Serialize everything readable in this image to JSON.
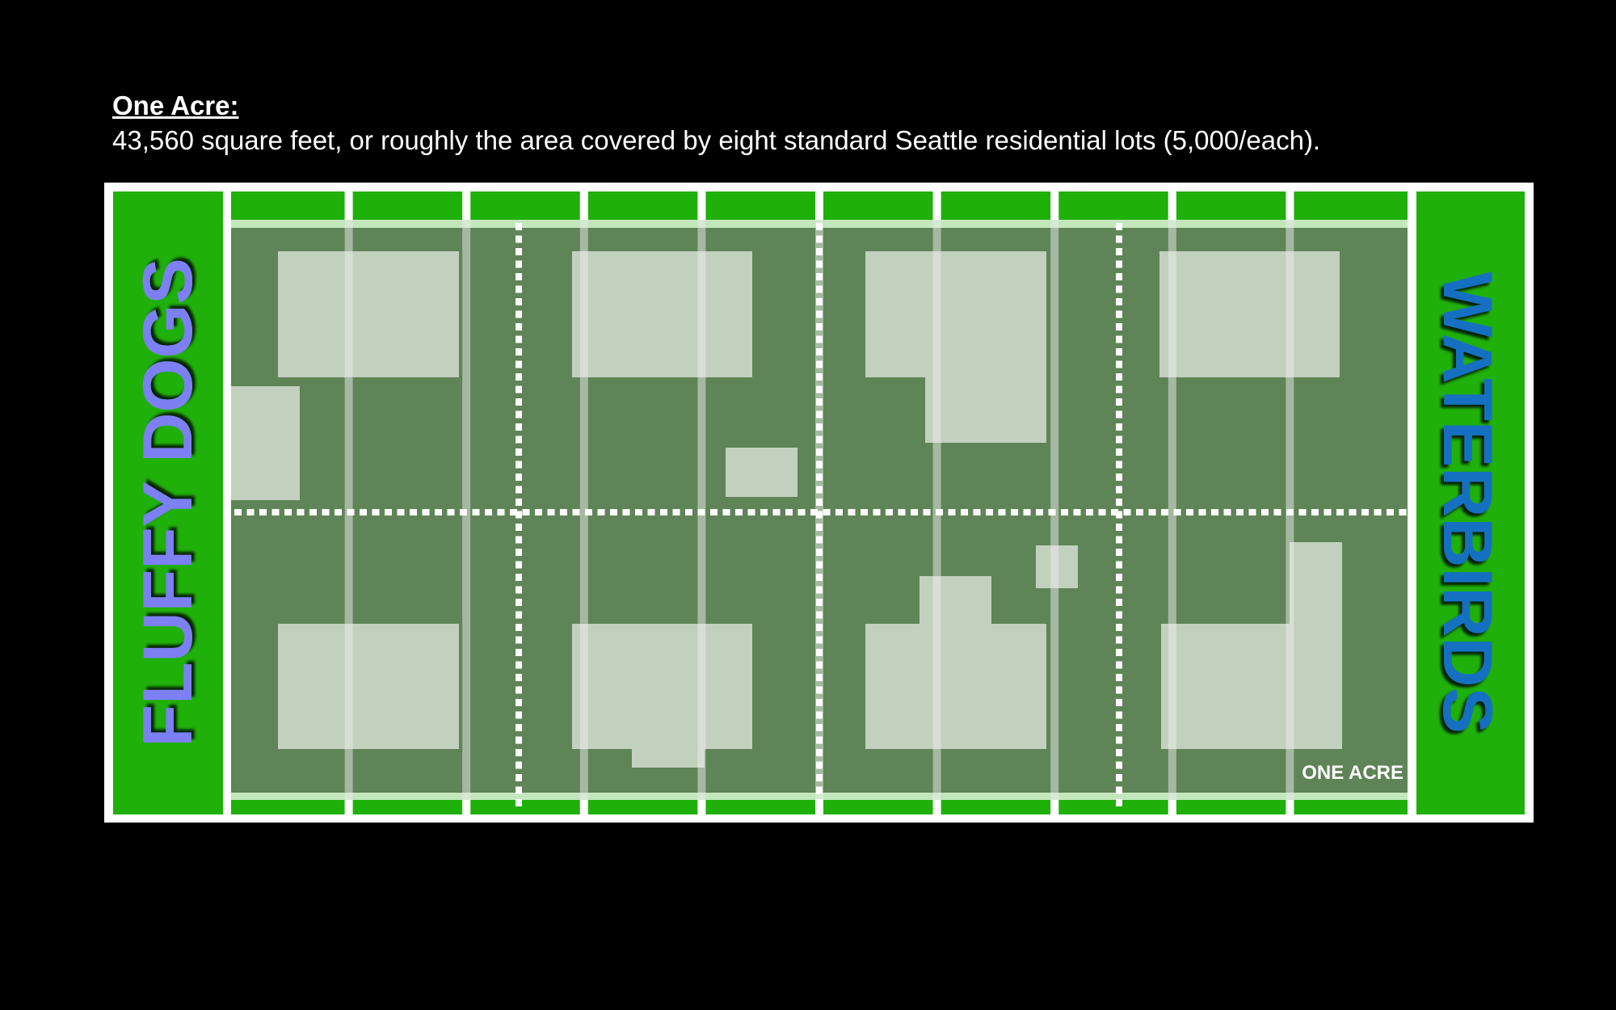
{
  "heading": {
    "title": "One Acre:",
    "description": "43,560 square feet, or roughly the area covered by eight standard Seattle residential lots (5,000/each)."
  },
  "field": {
    "left_endzone_label": "FLUFFY DOGS",
    "right_endzone_label": "WATERBIRDS",
    "area_label": "ONE ACRE"
  },
  "colors": {
    "endzone_green": "#20b00a",
    "field_green": "#5f8457",
    "lot_fill": "#c2d0be",
    "left_team": "#7b80f2",
    "right_team": "#1570c2"
  }
}
